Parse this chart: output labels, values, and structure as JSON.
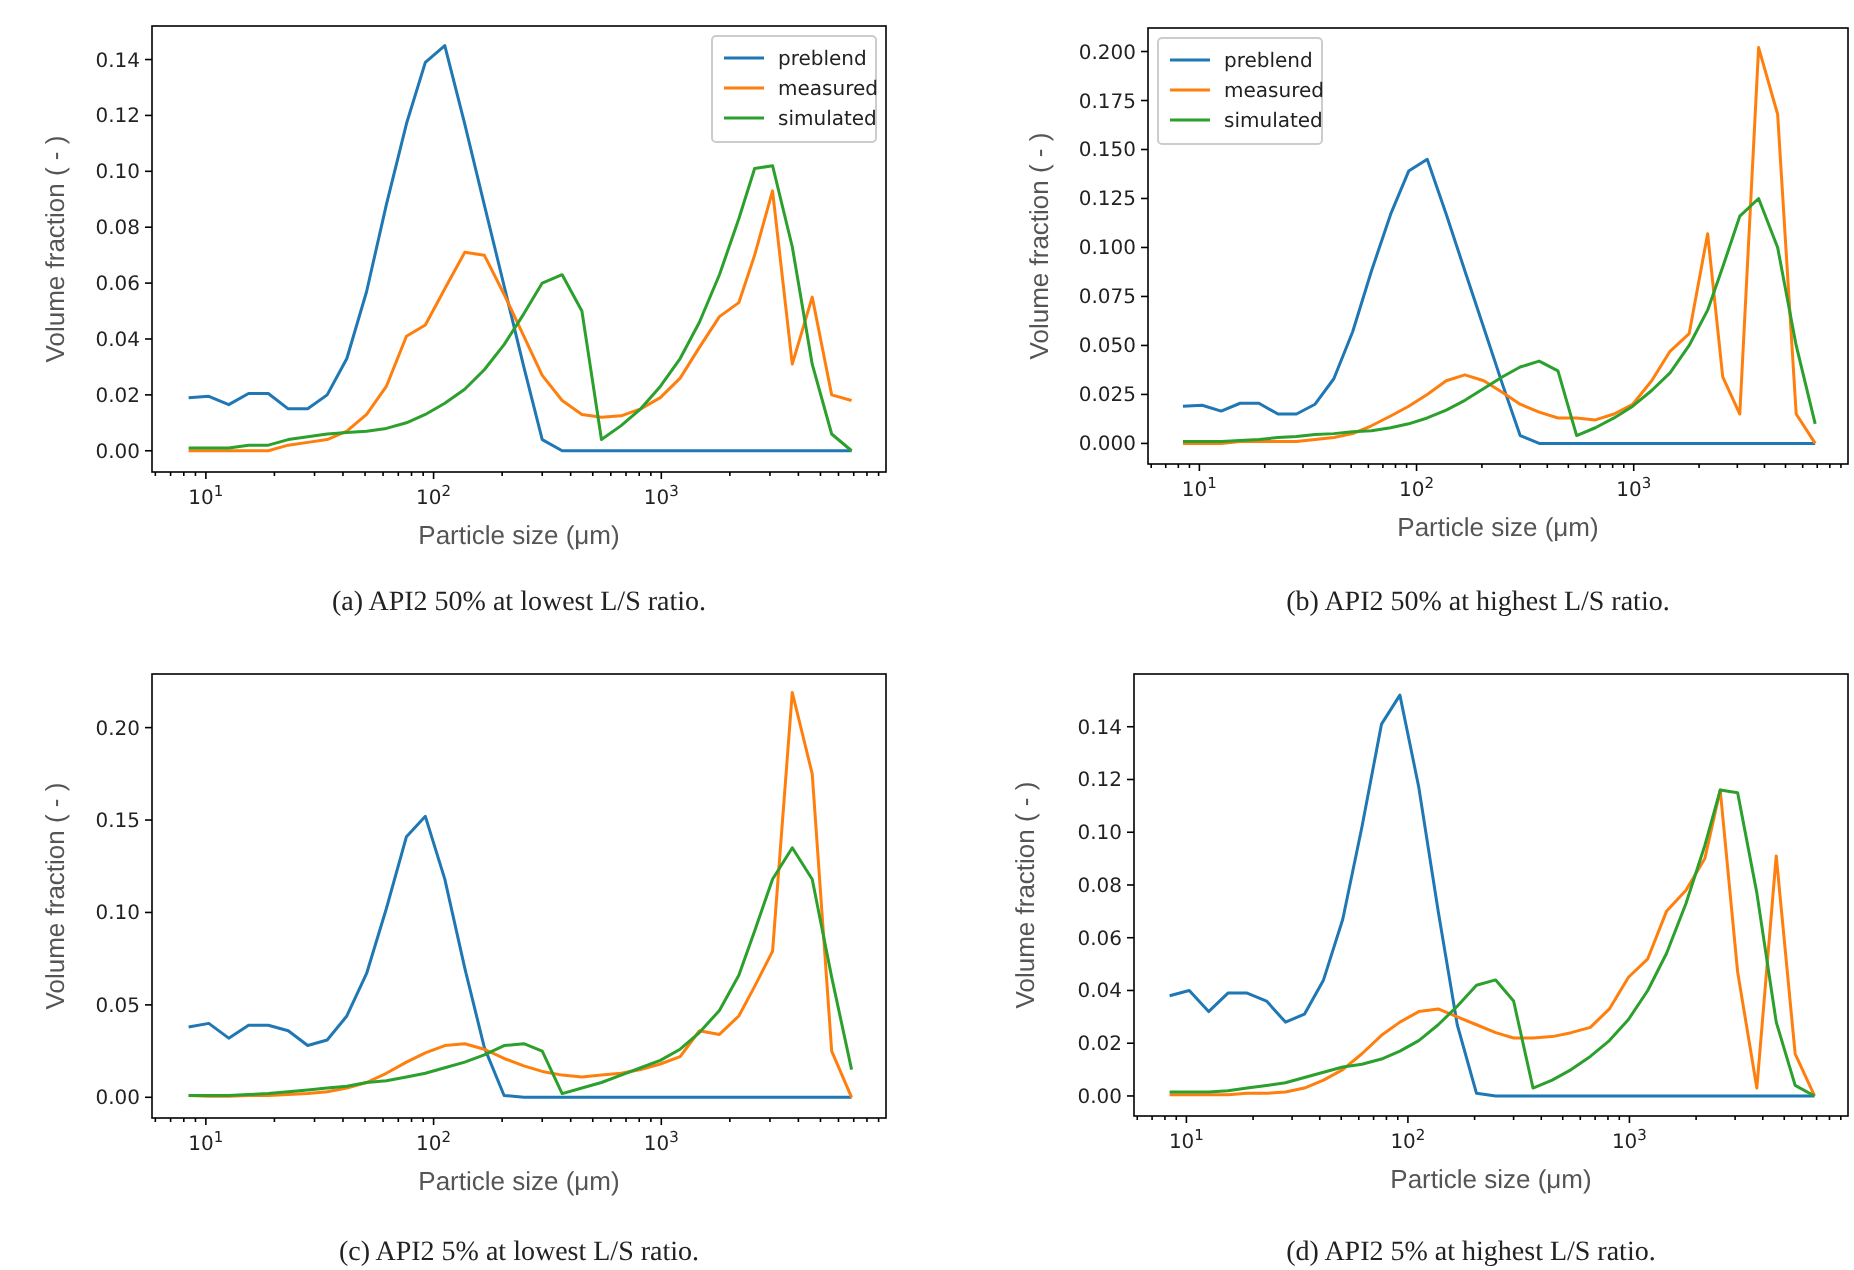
{
  "chart_data": [
    {
      "type": "line",
      "title": "(a) API2 50% at lowest L/S ratio.",
      "xlabel": "Particle size (μm)",
      "ylabel": "Volume fraction ( - )",
      "log": "x",
      "legend": "top right",
      "grid": false,
      "x": [
        8.4,
        10.3,
        12.6,
        15.4,
        18.8,
        23,
        28,
        34.1,
        41.6,
        50.8,
        62,
        76,
        92,
        112,
        137,
        167,
        204,
        249,
        300,
        367,
        448,
        546,
        666,
        812,
        990,
        1210,
        1470,
        1800,
        2190,
        2570,
        3080,
        3760,
        4600,
        5600,
        6850
      ],
      "xlim": [
        5.8,
        9700
      ],
      "ylim": [
        -0.0076,
        0.152
      ],
      "xticks": [
        {
          "value": 6,
          "label": null
        },
        {
          "value": 7,
          "label": null
        },
        {
          "value": 8,
          "label": null
        },
        {
          "value": 9,
          "label": null
        },
        {
          "value": 10,
          "label": "10$^{1}$"
        },
        {
          "value": 20,
          "label": null
        },
        {
          "value": 30,
          "label": null
        },
        {
          "value": 40,
          "label": null
        },
        {
          "value": 50,
          "label": null
        },
        {
          "value": 60,
          "label": null
        },
        {
          "value": 70,
          "label": null
        },
        {
          "value": 80,
          "label": null
        },
        {
          "value": 90,
          "label": null
        },
        {
          "value": 100,
          "label": "10$^{2}$"
        },
        {
          "value": 200,
          "label": null
        },
        {
          "value": 300,
          "label": null
        },
        {
          "value": 400,
          "label": null
        },
        {
          "value": 500,
          "label": null
        },
        {
          "value": 600,
          "label": null
        },
        {
          "value": 700,
          "label": null
        },
        {
          "value": 800,
          "label": null
        },
        {
          "value": 900,
          "label": null
        },
        {
          "value": 1000,
          "label": "10$^{3}$"
        },
        {
          "value": 2000,
          "label": null
        },
        {
          "value": 3000,
          "label": null
        },
        {
          "value": 4000,
          "label": null
        },
        {
          "value": 5000,
          "label": null
        },
        {
          "value": 6000,
          "label": null
        },
        {
          "value": 7000,
          "label": null
        },
        {
          "value": 8000,
          "label": null
        },
        {
          "value": 9000,
          "label": null
        }
      ],
      "yticks": [
        {
          "value": 0,
          "label": "0.00"
        },
        {
          "value": 0.02,
          "label": "0.02"
        },
        {
          "value": 0.04,
          "label": "0.04"
        },
        {
          "value": 0.06,
          "label": "0.06"
        },
        {
          "value": 0.08,
          "label": "0.08"
        },
        {
          "value": 0.1,
          "label": "0.10"
        },
        {
          "value": 0.12,
          "label": "0.12"
        },
        {
          "value": 0.14,
          "label": "0.14"
        }
      ],
      "series": [
        {
          "name": "preblend",
          "color": "#1f77b4",
          "values": [
            0.019,
            0.0195,
            0.0165,
            0.0205,
            0.0205,
            0.015,
            0.015,
            0.02,
            0.033,
            0.057,
            0.088,
            0.117,
            0.139,
            0.145,
            0.117,
            0.088,
            0.059,
            0.03,
            0.004,
            0,
            0,
            0,
            0,
            0,
            0,
            0,
            0,
            0,
            0,
            0,
            0,
            0,
            0,
            0,
            0
          ]
        },
        {
          "name": "measured",
          "color": "#ff7f0e",
          "values": [
            0,
            0,
            0,
            0,
            0,
            0.002,
            0.003,
            0.004,
            0.007,
            0.013,
            0.023,
            0.041,
            0.045,
            0.058,
            0.071,
            0.07,
            0.056,
            0.041,
            0.027,
            0.018,
            0.013,
            0.012,
            0.0125,
            0.015,
            0.019,
            0.026,
            0.037,
            0.048,
            0.053,
            0.07,
            0.093,
            0.031,
            0.055,
            0.02,
            0.018
          ]
        },
        {
          "name": "simulated",
          "color": "#2ca02c",
          "values": [
            0.001,
            0.001,
            0.001,
            0.002,
            0.002,
            0.004,
            0.005,
            0.006,
            0.0065,
            0.007,
            0.008,
            0.01,
            0.013,
            0.017,
            0.022,
            0.029,
            0.038,
            0.049,
            0.06,
            0.063,
            0.05,
            0.004,
            0.009,
            0.015,
            0.023,
            0.033,
            0.046,
            0.063,
            0.083,
            0.101,
            0.102,
            0.073,
            0.031,
            0.006,
            0
          ]
        }
      ]
    },
    {
      "type": "line",
      "title": "(b) API2 50% at highest L/S ratio.",
      "xlabel": "Particle size (μm)",
      "ylabel": "Volume fraction ( - )",
      "log": "x",
      "legend": "top left",
      "grid": false,
      "x": [
        8.4,
        10.3,
        12.6,
        15.4,
        18.8,
        23,
        28,
        34.1,
        41.6,
        50.8,
        62,
        76,
        92,
        112,
        137,
        167,
        204,
        249,
        300,
        367,
        448,
        546,
        666,
        812,
        990,
        1210,
        1470,
        1800,
        2190,
        2570,
        3080,
        3760,
        4600,
        5600,
        6850
      ],
      "xlim": [
        5.8,
        9700
      ],
      "ylim": [
        -0.0105,
        0.212
      ],
      "xticks": [
        {
          "value": 6,
          "label": null
        },
        {
          "value": 7,
          "label": null
        },
        {
          "value": 8,
          "label": null
        },
        {
          "value": 9,
          "label": null
        },
        {
          "value": 10,
          "label": "10$^{1}$"
        },
        {
          "value": 20,
          "label": null
        },
        {
          "value": 30,
          "label": null
        },
        {
          "value": 40,
          "label": null
        },
        {
          "value": 50,
          "label": null
        },
        {
          "value": 60,
          "label": null
        },
        {
          "value": 70,
          "label": null
        },
        {
          "value": 80,
          "label": null
        },
        {
          "value": 90,
          "label": null
        },
        {
          "value": 100,
          "label": "10$^{2}$"
        },
        {
          "value": 200,
          "label": null
        },
        {
          "value": 300,
          "label": null
        },
        {
          "value": 400,
          "label": null
        },
        {
          "value": 500,
          "label": null
        },
        {
          "value": 600,
          "label": null
        },
        {
          "value": 700,
          "label": null
        },
        {
          "value": 800,
          "label": null
        },
        {
          "value": 900,
          "label": null
        },
        {
          "value": 1000,
          "label": "10$^{3}$"
        },
        {
          "value": 2000,
          "label": null
        },
        {
          "value": 3000,
          "label": null
        },
        {
          "value": 4000,
          "label": null
        },
        {
          "value": 5000,
          "label": null
        },
        {
          "value": 6000,
          "label": null
        },
        {
          "value": 7000,
          "label": null
        },
        {
          "value": 8000,
          "label": null
        },
        {
          "value": 9000,
          "label": null
        }
      ],
      "yticks": [
        {
          "value": 0,
          "label": "0.000"
        },
        {
          "value": 0.025,
          "label": "0.025"
        },
        {
          "value": 0.05,
          "label": "0.050"
        },
        {
          "value": 0.075,
          "label": "0.075"
        },
        {
          "value": 0.1,
          "label": "0.100"
        },
        {
          "value": 0.125,
          "label": "0.125"
        },
        {
          "value": 0.15,
          "label": "0.150"
        },
        {
          "value": 0.175,
          "label": "0.175"
        },
        {
          "value": 0.2,
          "label": "0.200"
        }
      ],
      "series": [
        {
          "name": "preblend",
          "color": "#1f77b4",
          "values": [
            0.019,
            0.0195,
            0.0165,
            0.0205,
            0.0205,
            0.015,
            0.015,
            0.02,
            0.033,
            0.057,
            0.088,
            0.117,
            0.139,
            0.145,
            0.117,
            0.088,
            0.059,
            0.03,
            0.004,
            0,
            0,
            0,
            0,
            0,
            0,
            0,
            0,
            0,
            0,
            0,
            0,
            0,
            0,
            0,
            0
          ]
        },
        {
          "name": "measured",
          "color": "#ff7f0e",
          "values": [
            0,
            0,
            0,
            0.001,
            0.001,
            0.001,
            0.001,
            0.002,
            0.003,
            0.005,
            0.009,
            0.014,
            0.019,
            0.025,
            0.032,
            0.035,
            0.032,
            0.026,
            0.02,
            0.016,
            0.013,
            0.013,
            0.012,
            0.015,
            0.02,
            0.032,
            0.047,
            0.056,
            0.107,
            0.034,
            0.015,
            0.202,
            0.168,
            0.015,
            0
          ]
        },
        {
          "name": "simulated",
          "color": "#2ca02c",
          "values": [
            0.001,
            0.001,
            0.001,
            0.0015,
            0.002,
            0.003,
            0.0035,
            0.0045,
            0.005,
            0.006,
            0.0065,
            0.008,
            0.01,
            0.013,
            0.017,
            0.022,
            0.028,
            0.034,
            0.039,
            0.042,
            0.037,
            0.004,
            0.008,
            0.013,
            0.019,
            0.027,
            0.036,
            0.05,
            0.068,
            0.09,
            0.116,
            0.125,
            0.1,
            0.05,
            0.01
          ]
        }
      ]
    },
    {
      "type": "line",
      "title": "(c) API2 5% at lowest L/S ratio.",
      "xlabel": "Particle size (μm)",
      "ylabel": "Volume fraction ( - )",
      "log": "x",
      "grid": false,
      "x": [
        8.4,
        10.3,
        12.6,
        15.4,
        18.8,
        23,
        28,
        34.1,
        41.6,
        50.8,
        62,
        76,
        92,
        112,
        137,
        167,
        204,
        249,
        300,
        367,
        448,
        546,
        666,
        812,
        990,
        1210,
        1470,
        1800,
        2190,
        2570,
        3080,
        3760,
        4600,
        5600,
        6850
      ],
      "xlim": [
        5.8,
        9700
      ],
      "ylim": [
        -0.0112,
        0.229
      ],
      "xticks": [
        {
          "value": 6,
          "label": null
        },
        {
          "value": 7,
          "label": null
        },
        {
          "value": 8,
          "label": null
        },
        {
          "value": 9,
          "label": null
        },
        {
          "value": 10,
          "label": "10$^{1}$"
        },
        {
          "value": 20,
          "label": null
        },
        {
          "value": 30,
          "label": null
        },
        {
          "value": 40,
          "label": null
        },
        {
          "value": 50,
          "label": null
        },
        {
          "value": 60,
          "label": null
        },
        {
          "value": 70,
          "label": null
        },
        {
          "value": 80,
          "label": null
        },
        {
          "value": 90,
          "label": null
        },
        {
          "value": 100,
          "label": "10$^{2}$"
        },
        {
          "value": 200,
          "label": null
        },
        {
          "value": 300,
          "label": null
        },
        {
          "value": 400,
          "label": null
        },
        {
          "value": 500,
          "label": null
        },
        {
          "value": 600,
          "label": null
        },
        {
          "value": 700,
          "label": null
        },
        {
          "value": 800,
          "label": null
        },
        {
          "value": 900,
          "label": null
        },
        {
          "value": 1000,
          "label": "10$^{3}$"
        },
        {
          "value": 2000,
          "label": null
        },
        {
          "value": 3000,
          "label": null
        },
        {
          "value": 4000,
          "label": null
        },
        {
          "value": 5000,
          "label": null
        },
        {
          "value": 6000,
          "label": null
        },
        {
          "value": 7000,
          "label": null
        },
        {
          "value": 8000,
          "label": null
        },
        {
          "value": 9000,
          "label": null
        }
      ],
      "yticks": [
        {
          "value": 0,
          "label": "0.00"
        },
        {
          "value": 0.05,
          "label": "0.05"
        },
        {
          "value": 0.1,
          "label": "0.10"
        },
        {
          "value": 0.15,
          "label": "0.15"
        },
        {
          "value": 0.2,
          "label": "0.20"
        }
      ],
      "series": [
        {
          "color": "#1f77b4",
          "values": [
            0.038,
            0.04,
            0.032,
            0.039,
            0.039,
            0.036,
            0.028,
            0.031,
            0.044,
            0.067,
            0.102,
            0.141,
            0.152,
            0.118,
            0.07,
            0.027,
            0.001,
            0,
            0,
            0,
            0,
            0,
            0,
            0,
            0,
            0,
            0,
            0,
            0,
            0,
            0,
            0,
            0,
            0,
            0
          ]
        },
        {
          "color": "#ff7f0e",
          "values": [
            0.001,
            0.0005,
            0.0005,
            0.001,
            0.001,
            0.0015,
            0.002,
            0.003,
            0.005,
            0.008,
            0.013,
            0.019,
            0.024,
            0.028,
            0.029,
            0.026,
            0.021,
            0.017,
            0.014,
            0.012,
            0.011,
            0.012,
            0.013,
            0.015,
            0.018,
            0.022,
            0.036,
            0.034,
            0.044,
            0.06,
            0.079,
            0.219,
            0.175,
            0.025,
            0
          ]
        },
        {
          "color": "#2ca02c",
          "values": [
            0.001,
            0.001,
            0.001,
            0.0015,
            0.002,
            0.003,
            0.004,
            0.005,
            0.006,
            0.008,
            0.009,
            0.011,
            0.013,
            0.016,
            0.019,
            0.023,
            0.028,
            0.029,
            0.025,
            0.002,
            0.005,
            0.008,
            0.012,
            0.016,
            0.02,
            0.026,
            0.035,
            0.047,
            0.066,
            0.09,
            0.118,
            0.135,
            0.118,
            0.065,
            0.015
          ]
        }
      ]
    },
    {
      "type": "line",
      "title": "(d) API2 5% at highest L/S ratio.",
      "xlabel": "Particle size (μm)",
      "ylabel": "Volume fraction ( - )",
      "log": "x",
      "grid": false,
      "x": [
        8.4,
        10.3,
        12.6,
        15.4,
        18.8,
        23,
        28,
        34.1,
        41.6,
        50.8,
        62,
        76,
        92,
        112,
        137,
        167,
        204,
        249,
        300,
        367,
        448,
        546,
        666,
        812,
        990,
        1210,
        1470,
        1800,
        2190,
        2570,
        3080,
        3760,
        4600,
        5600,
        6850
      ],
      "xlim": [
        5.8,
        9700
      ],
      "ylim": [
        -0.0076,
        0.16
      ],
      "xticks": [
        {
          "value": 6,
          "label": null
        },
        {
          "value": 7,
          "label": null
        },
        {
          "value": 8,
          "label": null
        },
        {
          "value": 9,
          "label": null
        },
        {
          "value": 10,
          "label": "10$^{1}$"
        },
        {
          "value": 20,
          "label": null
        },
        {
          "value": 30,
          "label": null
        },
        {
          "value": 40,
          "label": null
        },
        {
          "value": 50,
          "label": null
        },
        {
          "value": 60,
          "label": null
        },
        {
          "value": 70,
          "label": null
        },
        {
          "value": 80,
          "label": null
        },
        {
          "value": 90,
          "label": null
        },
        {
          "value": 100,
          "label": "10$^{2}$"
        },
        {
          "value": 200,
          "label": null
        },
        {
          "value": 300,
          "label": null
        },
        {
          "value": 400,
          "label": null
        },
        {
          "value": 500,
          "label": null
        },
        {
          "value": 600,
          "label": null
        },
        {
          "value": 700,
          "label": null
        },
        {
          "value": 800,
          "label": null
        },
        {
          "value": 900,
          "label": null
        },
        {
          "value": 1000,
          "label": "10$^{3}$"
        },
        {
          "value": 2000,
          "label": null
        },
        {
          "value": 3000,
          "label": null
        },
        {
          "value": 4000,
          "label": null
        },
        {
          "value": 5000,
          "label": null
        },
        {
          "value": 6000,
          "label": null
        },
        {
          "value": 7000,
          "label": null
        },
        {
          "value": 8000,
          "label": null
        },
        {
          "value": 9000,
          "label": null
        }
      ],
      "yticks": [
        {
          "value": 0,
          "label": "0.00"
        },
        {
          "value": 0.02,
          "label": "0.02"
        },
        {
          "value": 0.04,
          "label": "0.04"
        },
        {
          "value": 0.06,
          "label": "0.06"
        },
        {
          "value": 0.08,
          "label": "0.08"
        },
        {
          "value": 0.1,
          "label": "0.10"
        },
        {
          "value": 0.12,
          "label": "0.12"
        },
        {
          "value": 0.14,
          "label": "0.14"
        }
      ],
      "series": [
        {
          "color": "#1f77b4",
          "values": [
            0.038,
            0.04,
            0.032,
            0.039,
            0.039,
            0.036,
            0.028,
            0.031,
            0.044,
            0.067,
            0.102,
            0.141,
            0.152,
            0.117,
            0.07,
            0.027,
            0.001,
            0,
            0,
            0,
            0,
            0,
            0,
            0,
            0,
            0,
            0,
            0,
            0,
            0,
            0,
            0,
            0,
            0,
            0
          ]
        },
        {
          "color": "#ff7f0e",
          "values": [
            0.0005,
            0.0005,
            0.0005,
            0.0005,
            0.001,
            0.001,
            0.0015,
            0.003,
            0.006,
            0.01,
            0.016,
            0.023,
            0.028,
            0.032,
            0.033,
            0.03,
            0.027,
            0.024,
            0.022,
            0.022,
            0.0225,
            0.024,
            0.026,
            0.033,
            0.045,
            0.052,
            0.07,
            0.078,
            0.09,
            0.116,
            0.047,
            0.003,
            0.091,
            0.016,
            0
          ]
        },
        {
          "color": "#2ca02c",
          "values": [
            0.0015,
            0.0015,
            0.0015,
            0.002,
            0.003,
            0.004,
            0.005,
            0.007,
            0.009,
            0.011,
            0.012,
            0.014,
            0.017,
            0.021,
            0.027,
            0.034,
            0.042,
            0.044,
            0.036,
            0.003,
            0.006,
            0.01,
            0.015,
            0.021,
            0.029,
            0.04,
            0.054,
            0.073,
            0.095,
            0.116,
            0.115,
            0.077,
            0.028,
            0.004,
            0
          ]
        }
      ]
    }
  ]
}
